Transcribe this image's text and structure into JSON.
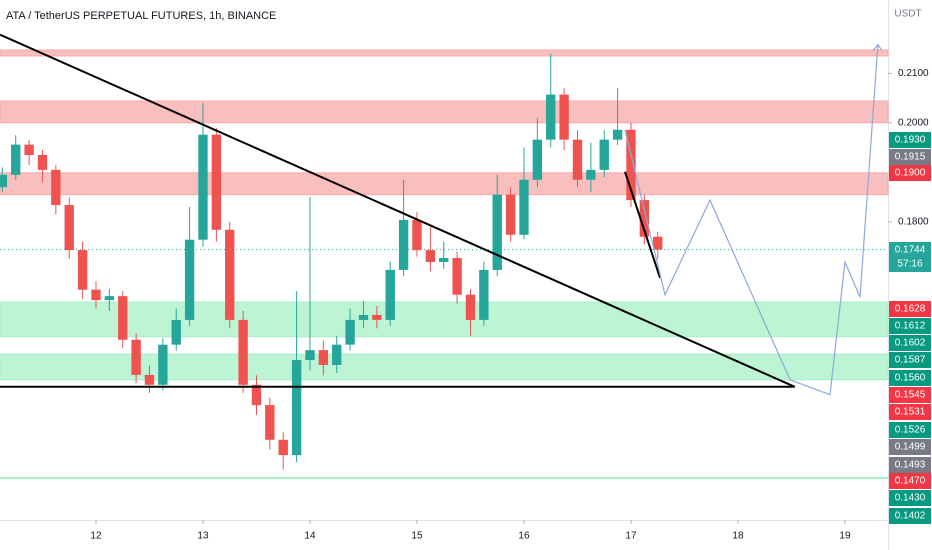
{
  "chart_data": {
    "type": "candlestick",
    "title": "ATA / TetherUS PERPETUAL FUTURES, 1h, BINANCE",
    "currency": "USDT",
    "up_color": "#26a69a",
    "down_color": "#ef5350",
    "xlim": [
      11.103,
      19.402
    ],
    "ylim": [
      0.1198,
      0.2248
    ],
    "xticks": [
      12,
      13,
      14,
      15,
      16,
      17,
      18,
      19
    ],
    "yticks": [
      {
        "value": 0.21,
        "label": "0.2100"
      },
      {
        "value": 0.2,
        "label": "0.2000"
      },
      {
        "value": 0.18,
        "label": "0.1800"
      }
    ],
    "x": [
      11.125,
      11.25,
      11.375,
      11.5,
      11.625,
      11.75,
      11.875,
      12,
      12.125,
      12.25,
      12.375,
      12.5,
      12.625,
      12.75,
      12.875,
      13,
      13.125,
      13.25,
      13.375,
      13.5,
      13.625,
      13.75,
      13.875,
      14,
      14.125,
      14.25,
      14.375,
      14.5,
      14.625,
      14.75,
      14.875,
      15,
      15.125,
      15.25,
      15.375,
      15.5,
      15.625,
      15.75,
      15.875,
      16,
      16.125,
      16.25,
      16.375,
      16.5,
      16.625,
      16.75,
      16.875,
      17,
      17.125,
      17.25
    ],
    "open": [
      0.187,
      0.1895,
      0.1956,
      0.1935,
      0.1905,
      0.1834,
      0.1743,
      0.1663,
      0.1642,
      0.165,
      0.1562,
      0.1491,
      0.1471,
      0.1552,
      0.1602,
      0.1764,
      0.1976,
      0.1784,
      0.1602,
      0.1471,
      0.143,
      0.136,
      0.1329,
      0.1521,
      0.1541,
      0.1511,
      0.1552,
      0.1602,
      0.1612,
      0.1602,
      0.1703,
      0.1804,
      0.1743,
      0.1719,
      0.1727,
      0.1653,
      0.1602,
      0.1703,
      0.1855,
      0.1774,
      0.1885,
      0.1966,
      0.2057,
      0.1966,
      0.1885,
      0.1905,
      0.1966,
      0.1986,
      0.1844,
      0.177
    ],
    "high": [
      0.191,
      0.1975,
      0.1965,
      0.1945,
      0.1915,
      0.185,
      0.176,
      0.168,
      0.1665,
      0.166,
      0.1575,
      0.151,
      0.1565,
      0.1625,
      0.183,
      0.204,
      0.199,
      0.18,
      0.162,
      0.149,
      0.1445,
      0.1375,
      0.166,
      0.185,
      0.156,
      0.157,
      0.1625,
      0.164,
      0.163,
      0.172,
      0.1885,
      0.182,
      0.179,
      0.176,
      0.174,
      0.1665,
      0.172,
      0.1895,
      0.187,
      0.195,
      0.201,
      0.214,
      0.207,
      0.1985,
      0.196,
      0.1985,
      0.207,
      0.2,
      0.1855,
      0.178
    ],
    "low": [
      0.186,
      0.1885,
      0.1915,
      0.188,
      0.1815,
      0.1725,
      0.1645,
      0.1625,
      0.162,
      0.1545,
      0.1475,
      0.1455,
      0.146,
      0.154,
      0.159,
      0.175,
      0.176,
      0.1585,
      0.1455,
      0.141,
      0.134,
      0.13,
      0.1315,
      0.15,
      0.149,
      0.1495,
      0.154,
      0.1585,
      0.1585,
      0.159,
      0.169,
      0.173,
      0.17,
      0.1705,
      0.1635,
      0.157,
      0.159,
      0.169,
      0.176,
      0.1765,
      0.187,
      0.195,
      0.1945,
      0.187,
      0.186,
      0.189,
      0.1955,
      0.183,
      0.1755,
      0.1725
    ],
    "close": [
      0.1895,
      0.1956,
      0.1935,
      0.1905,
      0.1834,
      0.1743,
      0.1663,
      0.1642,
      0.165,
      0.1562,
      0.1491,
      0.1471,
      0.1552,
      0.1602,
      0.1764,
      0.1976,
      0.1784,
      0.1602,
      0.1471,
      0.143,
      0.136,
      0.1329,
      0.1521,
      0.1541,
      0.1511,
      0.1552,
      0.1602,
      0.1612,
      0.1602,
      0.1703,
      0.1804,
      0.1743,
      0.1719,
      0.1727,
      0.1653,
      0.1602,
      0.1703,
      0.1855,
      0.1774,
      0.1885,
      0.1966,
      0.2057,
      0.1966,
      0.1885,
      0.1905,
      0.1966,
      0.1986,
      0.1844,
      0.177,
      0.1744
    ],
    "zones": [
      {
        "color": "#f7a9a8",
        "from": 0.2135,
        "to": 0.2147
      },
      {
        "color": "#f7a9a8",
        "from": 0.2,
        "to": 0.2044
      },
      {
        "color": "#f7a9a8",
        "from": 0.1855,
        "to": 0.1899
      },
      {
        "color": "#a5f0c5",
        "from": 0.1568,
        "to": 0.1638
      },
      {
        "color": "#a5f0c5",
        "from": 0.1481,
        "to": 0.1533
      },
      {
        "color": "#a5f0c5",
        "from": 0.1283,
        "to": 0.1284
      }
    ],
    "lines": [
      {
        "color": "#000000",
        "x": [
          11.103,
          18.53
        ],
        "values": [
          0.2178,
          0.1467
        ]
      },
      {
        "color": "#000000",
        "x": [
          11.103,
          18.53
        ],
        "values": [
          0.1467,
          0.1467
        ]
      },
      {
        "color": "#000000",
        "x": [
          16.944,
          17.271
        ],
        "values": [
          0.1901,
          0.1687
        ]
      },
      {
        "color": "#8fa8d8",
        "x": [
          16.944,
          17.318,
          17.738,
          18.486,
          18.86,
          19.0,
          19.14,
          19.308
        ],
        "values": [
          0.1986,
          0.1653,
          0.1844,
          0.1481,
          0.1451,
          0.1719,
          0.1648,
          0.2158
        ]
      }
    ],
    "last_price": {
      "value": 0.1744,
      "label": "0.1744",
      "color": "#26a69a"
    },
    "countdown": "57:16",
    "price_tags": [
      {
        "value": 0.193,
        "label": "0.1930",
        "color": "#089981"
      },
      {
        "value": 0.1915,
        "label": "0.1915",
        "color": "#787b86"
      },
      {
        "value": 0.19,
        "label": "0.1900",
        "color": "#f23645"
      },
      {
        "value": 0.1628,
        "label": "0.1628",
        "color": "#f23645"
      },
      {
        "value": 0.1612,
        "label": "0.1612",
        "color": "#089981"
      },
      {
        "value": 0.1602,
        "label": "0.1602",
        "color": "#089981"
      },
      {
        "value": 0.1587,
        "label": "0.1587",
        "color": "#089981"
      },
      {
        "value": 0.156,
        "label": "0.1560",
        "color": "#089981"
      },
      {
        "value": 0.1545,
        "label": "0.1545",
        "color": "#f23645"
      },
      {
        "value": 0.1531,
        "label": "0.1531",
        "color": "#f23645"
      },
      {
        "value": 0.1526,
        "label": "0.1526",
        "color": "#089981"
      },
      {
        "value": 0.1499,
        "label": "0.1499",
        "color": "#787b86"
      },
      {
        "value": 0.1493,
        "label": "0.1493",
        "color": "#787b86"
      },
      {
        "value": 0.147,
        "label": "0.1470",
        "color": "#f23645"
      },
      {
        "value": 0.143,
        "label": "0.1430",
        "color": "#089981"
      },
      {
        "value": 0.1402,
        "label": "0.1402",
        "color": "#089981"
      }
    ]
  }
}
